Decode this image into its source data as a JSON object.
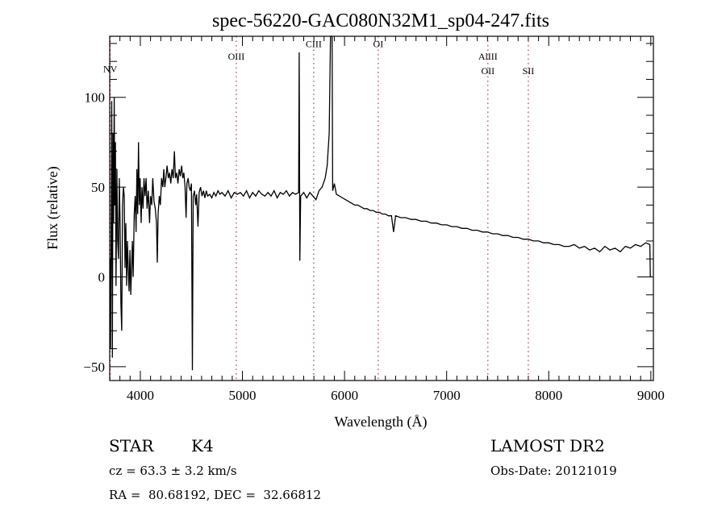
{
  "chart_data": {
    "type": "line",
    "title": "spec-56220-GAC080N32M1_sp04-247.fits",
    "xlabel": "Wavelength (Å)",
    "ylabel": "Flux (relative)",
    "xlim": [
      3700,
      9025
    ],
    "ylim": [
      -57.7,
      134
    ],
    "xticks": [
      4000,
      5000,
      6000,
      7000,
      8000,
      9000
    ],
    "xtick_labels": [
      "4000",
      "5000",
      "6000",
      "7000",
      "8000",
      "9000"
    ],
    "yticks": [
      -50,
      0,
      50,
      100
    ],
    "ytick_labels": [
      "−50",
      "0",
      "50",
      "100"
    ],
    "grid": false,
    "line_markers": [
      {
        "label": "NV",
        "wavelength": 3705,
        "flux_label": 114
      },
      {
        "label": "OIII",
        "wavelength": 4940,
        "flux_label": 121
      },
      {
        "label": "CIII",
        "wavelength": 5698,
        "flux_label": 128
      },
      {
        "label": "OI",
        "wavelength": 6330,
        "flux_label": 128
      },
      {
        "label": "AlIII",
        "wavelength": 7404,
        "flux_label": 121
      },
      {
        "label": "OII",
        "wavelength": 7404,
        "flux_label": 113
      },
      {
        "label": "SII",
        "wavelength": 7800,
        "flux_label": 113
      }
    ],
    "series": [
      {
        "name": "flux",
        "points": [
          [
            3702,
            10
          ],
          [
            3708,
            -40
          ],
          [
            3714,
            20
          ],
          [
            3720,
            98
          ],
          [
            3726,
            -45
          ],
          [
            3732,
            80
          ],
          [
            3738,
            30
          ],
          [
            3744,
            100
          ],
          [
            3750,
            40
          ],
          [
            3756,
            75
          ],
          [
            3762,
            -5
          ],
          [
            3770,
            60
          ],
          [
            3778,
            20
          ],
          [
            3786,
            10
          ],
          [
            3794,
            55
          ],
          [
            3802,
            30
          ],
          [
            3810,
            -15
          ],
          [
            3818,
            -30
          ],
          [
            3826,
            40
          ],
          [
            3834,
            50
          ],
          [
            3842,
            45
          ],
          [
            3850,
            5
          ],
          [
            3858,
            30
          ],
          [
            3866,
            -5
          ],
          [
            3874,
            20
          ],
          [
            3882,
            5
          ],
          [
            3890,
            -8
          ],
          [
            3898,
            15
          ],
          [
            3906,
            -10
          ],
          [
            3914,
            5
          ],
          [
            3922,
            20
          ],
          [
            3930,
            0
          ],
          [
            3940,
            35
          ],
          [
            3950,
            45
          ],
          [
            3958,
            25
          ],
          [
            3966,
            60
          ],
          [
            3974,
            35
          ],
          [
            3982,
            75
          ],
          [
            3990,
            40
          ],
          [
            3998,
            55
          ],
          [
            4008,
            30
          ],
          [
            4016,
            50
          ],
          [
            4026,
            38
          ],
          [
            4036,
            55
          ],
          [
            4046,
            45
          ],
          [
            4056,
            55
          ],
          [
            4066,
            38
          ],
          [
            4078,
            48
          ],
          [
            4090,
            30
          ],
          [
            4100,
            45
          ],
          [
            4112,
            40
          ],
          [
            4122,
            55
          ],
          [
            4134,
            42
          ],
          [
            4146,
            38
          ],
          [
            4158,
            30
          ],
          [
            4166,
            8
          ],
          [
            4174,
            35
          ],
          [
            4186,
            45
          ],
          [
            4196,
            40
          ],
          [
            4208,
            55
          ],
          [
            4220,
            50
          ],
          [
            4230,
            60
          ],
          [
            4240,
            50
          ],
          [
            4252,
            56
          ],
          [
            4262,
            62
          ],
          [
            4274,
            55
          ],
          [
            4286,
            58
          ],
          [
            4298,
            52
          ],
          [
            4310,
            60
          ],
          [
            4322,
            55
          ],
          [
            4334,
            70
          ],
          [
            4344,
            55
          ],
          [
            4356,
            58
          ],
          [
            4368,
            52
          ],
          [
            4380,
            60
          ],
          [
            4392,
            56
          ],
          [
            4404,
            62
          ],
          [
            4416,
            55
          ],
          [
            4426,
            58
          ],
          [
            4438,
            50
          ],
          [
            4448,
            33
          ],
          [
            4456,
            52
          ],
          [
            4468,
            55
          ],
          [
            4478,
            50
          ],
          [
            4490,
            48
          ],
          [
            4500,
            52
          ],
          [
            4510,
            -52
          ],
          [
            4518,
            45
          ],
          [
            4530,
            48
          ],
          [
            4542,
            40
          ],
          [
            4552,
            46
          ],
          [
            4564,
            28
          ],
          [
            4576,
            47
          ],
          [
            4590,
            50
          ],
          [
            4604,
            45
          ],
          [
            4618,
            48
          ],
          [
            4632,
            44
          ],
          [
            4646,
            48
          ],
          [
            4660,
            45
          ],
          [
            4680,
            46
          ],
          [
            4700,
            44
          ],
          [
            4720,
            47
          ],
          [
            4740,
            45
          ],
          [
            4760,
            48
          ],
          [
            4780,
            46
          ],
          [
            4800,
            47
          ],
          [
            4830,
            45
          ],
          [
            4860,
            48
          ],
          [
            4890,
            44
          ],
          [
            4920,
            47
          ],
          [
            4950,
            46
          ],
          [
            4980,
            47
          ],
          [
            5010,
            45
          ],
          [
            5040,
            48
          ],
          [
            5070,
            44
          ],
          [
            5100,
            47
          ],
          [
            5130,
            45
          ],
          [
            5160,
            48
          ],
          [
            5190,
            46
          ],
          [
            5220,
            45
          ],
          [
            5250,
            47
          ],
          [
            5280,
            45
          ],
          [
            5310,
            48
          ],
          [
            5340,
            44
          ],
          [
            5370,
            47
          ],
          [
            5400,
            46
          ],
          [
            5430,
            48
          ],
          [
            5460,
            45
          ],
          [
            5490,
            47
          ],
          [
            5520,
            46
          ],
          [
            5550,
            47
          ],
          [
            5556,
            125
          ],
          [
            5562,
            9
          ],
          [
            5570,
            45
          ],
          [
            5600,
            47
          ],
          [
            5630,
            44
          ],
          [
            5660,
            47
          ],
          [
            5690,
            45
          ],
          [
            5720,
            43
          ],
          [
            5750,
            48
          ],
          [
            5780,
            50
          ],
          [
            5810,
            55
          ],
          [
            5830,
            62
          ],
          [
            5850,
            80
          ],
          [
            5862,
            134
          ],
          [
            5878,
            134
          ],
          [
            5884,
            48
          ],
          [
            5900,
            52
          ],
          [
            5920,
            46
          ],
          [
            5950,
            45
          ],
          [
            5980,
            44
          ],
          [
            6010,
            43
          ],
          [
            6040,
            42
          ],
          [
            6070,
            41
          ],
          [
            6100,
            40
          ],
          [
            6130,
            40
          ],
          [
            6160,
            39
          ],
          [
            6190,
            38
          ],
          [
            6220,
            38
          ],
          [
            6250,
            37
          ],
          [
            6280,
            37
          ],
          [
            6310,
            36
          ],
          [
            6340,
            36
          ],
          [
            6370,
            35
          ],
          [
            6400,
            35
          ],
          [
            6430,
            34
          ],
          [
            6460,
            34
          ],
          [
            6480,
            25
          ],
          [
            6500,
            34
          ],
          [
            6550,
            33
          ],
          [
            6600,
            33
          ],
          [
            6650,
            32
          ],
          [
            6700,
            32
          ],
          [
            6750,
            31
          ],
          [
            6800,
            31
          ],
          [
            6850,
            30
          ],
          [
            6900,
            30
          ],
          [
            6950,
            29
          ],
          [
            7000,
            29
          ],
          [
            7050,
            28
          ],
          [
            7100,
            28
          ],
          [
            7150,
            27
          ],
          [
            7200,
            27
          ],
          [
            7250,
            26
          ],
          [
            7300,
            26
          ],
          [
            7350,
            25
          ],
          [
            7400,
            25
          ],
          [
            7450,
            24
          ],
          [
            7500,
            24
          ],
          [
            7550,
            23
          ],
          [
            7600,
            23
          ],
          [
            7650,
            22
          ],
          [
            7700,
            22
          ],
          [
            7750,
            21
          ],
          [
            7800,
            21
          ],
          [
            7850,
            20
          ],
          [
            7900,
            20
          ],
          [
            7950,
            19
          ],
          [
            8000,
            19
          ],
          [
            8050,
            18
          ],
          [
            8100,
            18
          ],
          [
            8150,
            17
          ],
          [
            8200,
            17
          ],
          [
            8250,
            18
          ],
          [
            8300,
            16
          ],
          [
            8350,
            17
          ],
          [
            8400,
            15
          ],
          [
            8450,
            16
          ],
          [
            8500,
            14
          ],
          [
            8550,
            17
          ],
          [
            8600,
            15
          ],
          [
            8650,
            16
          ],
          [
            8700,
            14
          ],
          [
            8750,
            17
          ],
          [
            8800,
            16
          ],
          [
            8850,
            18
          ],
          [
            8900,
            17
          ],
          [
            8950,
            19
          ],
          [
            8990,
            18
          ],
          [
            8995,
            0
          ],
          [
            9010,
            0
          ]
        ]
      }
    ]
  },
  "info": {
    "class_label": "STAR",
    "subclass": "K4",
    "survey": "LAMOST DR2",
    "cz": "cz = 63.3 ± 3.2 km/s",
    "obs_date": "Obs-Date: 20121019",
    "coords": "RA =  80.68192, DEC =  32.66812"
  }
}
